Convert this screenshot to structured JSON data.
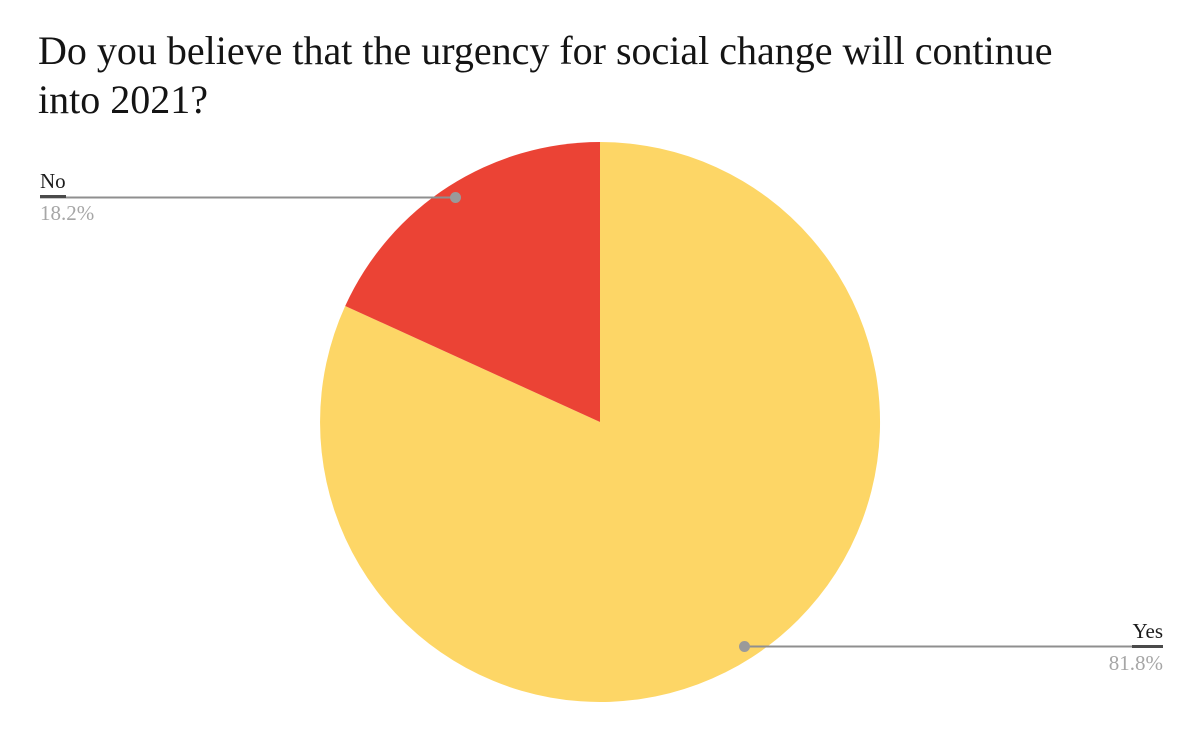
{
  "title": {
    "text": "Do you believe that the urgency for social change will continue into 2021?",
    "lines": [
      "Do you believe that the urgency for social change will continue",
      "into 2021?"
    ]
  },
  "chart_data": {
    "type": "pie",
    "title": "Do you believe that the urgency for social change will continue into 2021?",
    "categories": [
      "Yes",
      "No"
    ],
    "values": [
      81.8,
      18.2
    ],
    "slices": [
      {
        "label": "Yes",
        "value": 81.8,
        "display_pct": "81.8%",
        "color": "#FDD666",
        "label_side": "right"
      },
      {
        "label": "No",
        "value": 18.2,
        "display_pct": "18.2%",
        "color": "#EB4335",
        "label_side": "left"
      }
    ],
    "start_angle_deg": 0,
    "direction": "clockwise",
    "legend_position": "none",
    "grid": false,
    "colors": {
      "background": "#ffffff",
      "title_text": "#141414",
      "label_text": "#1b1b1b",
      "pct_text": "#a6a6a6",
      "leader_line": "#8f8f8f",
      "leader_dot": "#9a9a9a",
      "label_underline": "#4a4a4a"
    }
  }
}
